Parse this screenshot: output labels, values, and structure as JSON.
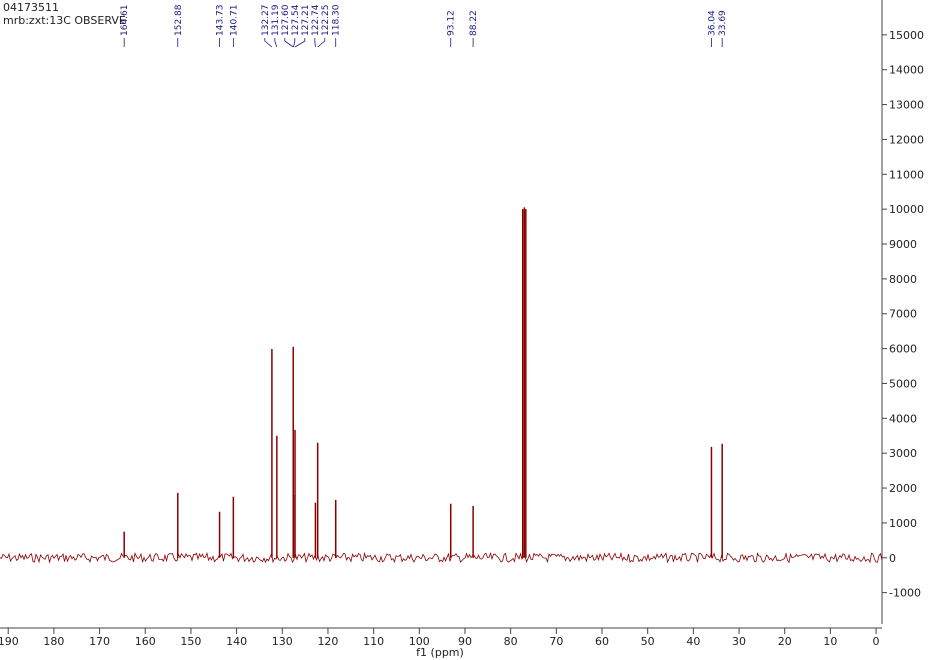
{
  "chart_data": {
    "type": "nmr",
    "title": "04173511",
    "subtitle": "mrb:zxt:13C OBSERVE",
    "x_label": "f1 (ppm)",
    "color": "#8b0000",
    "label_color": "#1a1a80",
    "xlim": [
      191.8,
      -1.3
    ],
    "xticks": [
      190,
      180,
      170,
      160,
      150,
      140,
      130,
      120,
      110,
      100,
      90,
      80,
      70,
      60,
      50,
      40,
      30,
      20,
      10,
      0
    ],
    "ylim": [
      -1900,
      16000
    ],
    "yticks": [
      -1000,
      0,
      1000,
      2000,
      3000,
      4000,
      5000,
      6000,
      7000,
      8000,
      9000,
      10000,
      11000,
      12000,
      13000,
      14000,
      15000
    ],
    "peaks": {
      "x": [
        164.61,
        152.88,
        143.73,
        140.71,
        132.27,
        131.19,
        127.6,
        127.54,
        127.21,
        122.74,
        122.25,
        118.3,
        93.12,
        88.22,
        36.04,
        33.69
      ],
      "x_labels": [
        "164.61",
        "152.88",
        "143.73",
        "140.71",
        "132.27",
        "131.19",
        "127.60",
        "127.54",
        "127.21",
        "122.74",
        "122.25",
        "118.30",
        "93.12",
        "88.22",
        "36.04",
        "33.69"
      ],
      "values": [
        750,
        1860,
        1320,
        1750,
        5990,
        3500,
        6050,
        1800,
        3670,
        1580,
        3300,
        1660,
        1550,
        1490,
        3180,
        3270
      ]
    },
    "solvent_peaks": {
      "x": [
        77.36,
        77.0,
        76.68
      ],
      "values": [
        10000,
        10050,
        10000
      ]
    }
  }
}
